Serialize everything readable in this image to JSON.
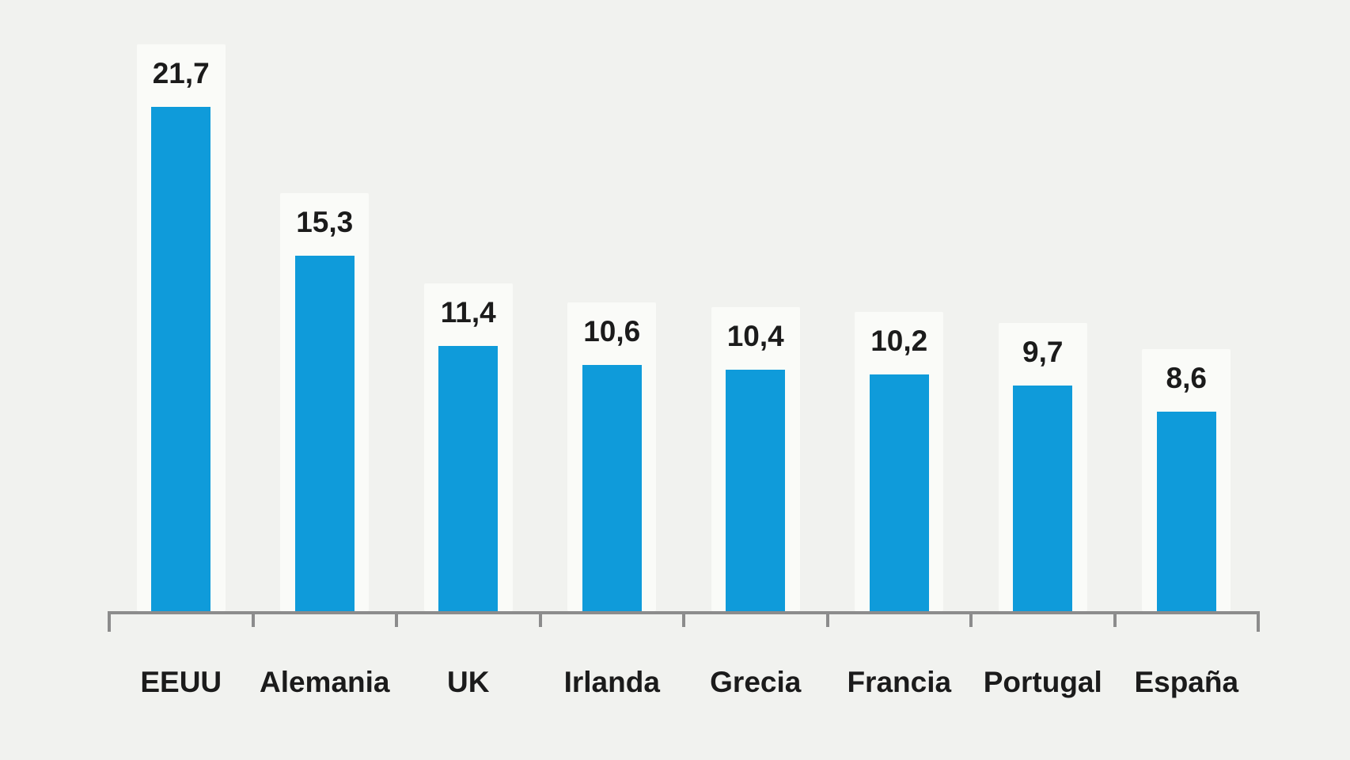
{
  "chart_data": {
    "type": "bar",
    "categories": [
      "EEUU",
      "Alemania",
      "UK",
      "Irlanda",
      "Grecia",
      "Francia",
      "Portugal",
      "España"
    ],
    "values": [
      21.7,
      15.3,
      11.4,
      10.6,
      10.4,
      10.2,
      9.7,
      8.6
    ],
    "value_labels": [
      "21,7",
      "15,3",
      "11,4",
      "10,6",
      "10,4",
      "10,2",
      "9,7",
      "8,6"
    ],
    "title": "",
    "xlabel": "",
    "ylabel": "",
    "ylim": [
      0,
      23.5
    ],
    "grid": false,
    "legend": null,
    "colors": {
      "bar": "#0f9bda",
      "text": "#1b1b1b",
      "axis": "#8c8c8c",
      "background": "#f1f2ef",
      "column_highlight": "#fafbf8"
    }
  }
}
